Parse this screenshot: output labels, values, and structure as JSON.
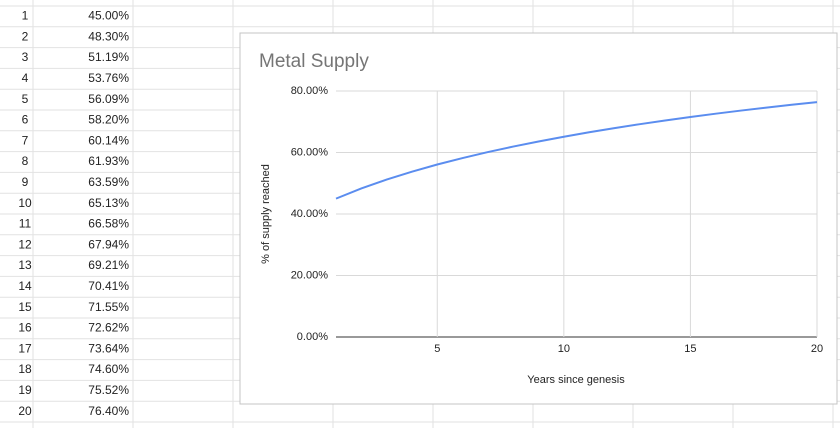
{
  "sheet": {
    "rows": [
      {
        "num": "1",
        "value": "45.00%"
      },
      {
        "num": "2",
        "value": "48.30%"
      },
      {
        "num": "3",
        "value": "51.19%"
      },
      {
        "num": "4",
        "value": "53.76%"
      },
      {
        "num": "5",
        "value": "56.09%"
      },
      {
        "num": "6",
        "value": "58.20%"
      },
      {
        "num": "7",
        "value": "60.14%"
      },
      {
        "num": "8",
        "value": "61.93%"
      },
      {
        "num": "9",
        "value": "63.59%"
      },
      {
        "num": "10",
        "value": "65.13%"
      },
      {
        "num": "11",
        "value": "66.58%"
      },
      {
        "num": "12",
        "value": "67.94%"
      },
      {
        "num": "13",
        "value": "69.21%"
      },
      {
        "num": "14",
        "value": "70.41%"
      },
      {
        "num": "15",
        "value": "71.55%"
      },
      {
        "num": "16",
        "value": "72.62%"
      },
      {
        "num": "17",
        "value": "73.64%"
      },
      {
        "num": "18",
        "value": "74.60%"
      },
      {
        "num": "19",
        "value": "75.52%"
      },
      {
        "num": "20",
        "value": "76.40%"
      }
    ]
  },
  "chart_data": {
    "type": "line",
    "title": "Metal Supply",
    "x_label": "Years since genesis",
    "y_label": "% of supply reached",
    "x": [
      1,
      2,
      3,
      4,
      5,
      6,
      7,
      8,
      9,
      10,
      11,
      12,
      13,
      14,
      15,
      16,
      17,
      18,
      19,
      20
    ],
    "series": [
      {
        "color": "#5b8def",
        "values": [
          45.0,
          48.3,
          51.19,
          53.76,
          56.09,
          58.2,
          60.14,
          61.93,
          63.59,
          65.13,
          66.58,
          67.94,
          69.21,
          70.41,
          71.55,
          72.62,
          73.64,
          74.6,
          75.52,
          76.4
        ]
      }
    ],
    "xlim": [
      1,
      20
    ],
    "xticks": [
      5,
      10,
      15,
      20
    ],
    "ylim": [
      0,
      80
    ],
    "yticks": [
      {
        "value": 0,
        "label": "0.00%"
      },
      {
        "value": 20,
        "label": "20.00%"
      },
      {
        "value": 40,
        "label": "40.00%"
      },
      {
        "value": 60,
        "label": "60.00%"
      },
      {
        "value": 80,
        "label": "80.00%"
      }
    ],
    "grid": true
  }
}
